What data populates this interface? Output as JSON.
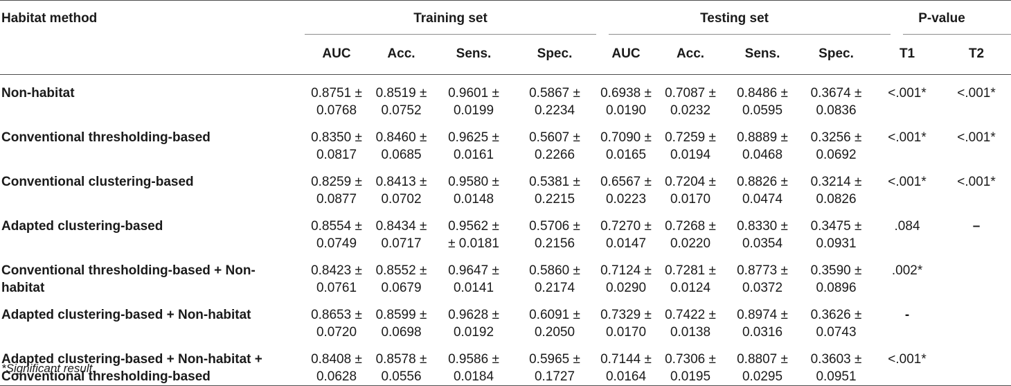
{
  "header": {
    "method_label": "Habitat method",
    "groups": {
      "training": "Training set",
      "testing": "Testing set",
      "pvalue": "P-value"
    },
    "metrics": [
      "AUC",
      "Acc.",
      "Sens.",
      "Spec.",
      "AUC",
      "Acc.",
      "Sens.",
      "Spec.",
      "T1",
      "T2"
    ]
  },
  "rows": [
    {
      "method": "Non-habitat",
      "cells": [
        [
          "0.8751 ±",
          "0.0768"
        ],
        [
          "0.8519 ±",
          "0.0752"
        ],
        [
          "0.9601 ±",
          "0.0199"
        ],
        [
          "0.5867 ±",
          "0.2234"
        ],
        [
          "0.6938 ±",
          "0.0190"
        ],
        [
          "0.7087 ±",
          "0.0232"
        ],
        [
          "0.8486 ±",
          "0.0595"
        ],
        [
          "0.3674 ±",
          "0.0836"
        ]
      ],
      "t1": "<.001*",
      "t2": "<.001*"
    },
    {
      "method": "Conventional thresholding-based",
      "cells": [
        [
          "0.8350 ±",
          "0.0817"
        ],
        [
          "0.8460 ±",
          "0.0685"
        ],
        [
          "0.9625 ±",
          "0.0161"
        ],
        [
          "0.5607 ±",
          "0.2266"
        ],
        [
          "0.7090 ±",
          "0.0165"
        ],
        [
          "0.7259 ±",
          "0.0194"
        ],
        [
          "0.8889 ±",
          "0.0468"
        ],
        [
          "0.3256 ±",
          "0.0692"
        ]
      ],
      "t1": "<.001*",
      "t2": "<.001*"
    },
    {
      "method": "Conventional clustering-based",
      "cells": [
        [
          "0.8259 ±",
          "0.0877"
        ],
        [
          "0.8413 ±",
          "0.0702"
        ],
        [
          "0.9580 ±",
          "0.0148"
        ],
        [
          "0.5381 ±",
          "0.2215"
        ],
        [
          "0.6567 ±",
          "0.0223"
        ],
        [
          "0.7204 ±",
          "0.0170"
        ],
        [
          "0.8826 ±",
          "0.0474"
        ],
        [
          "0.3214 ±",
          "0.0826"
        ]
      ],
      "t1": "<.001*",
      "t2": "<.001*"
    },
    {
      "method": "Adapted clustering-based",
      "cells": [
        [
          "0.8554 ±",
          "0.0749"
        ],
        [
          "0.8434 ±",
          "0.0717"
        ],
        [
          "0.9562 ±",
          "± 0.0181"
        ],
        [
          "0.5706 ±",
          "0.2156"
        ],
        [
          "0.7270 ±",
          "0.0147"
        ],
        [
          "0.7268 ±",
          "0.0220"
        ],
        [
          "0.8330 ±",
          "0.0354"
        ],
        [
          "0.3475 ±",
          "0.0931"
        ]
      ],
      "t1": ".084",
      "t2": "–"
    },
    {
      "method_line1": "Conventional thresholding-based + Non-",
      "method_line2": "habitat",
      "cells": [
        [
          "0.8423 ±",
          "0.0761"
        ],
        [
          "0.8552 ±",
          "0.0679"
        ],
        [
          "0.9647 ±",
          "0.0141"
        ],
        [
          "0.5860 ±",
          "0.2174"
        ],
        [
          "0.7124 ±",
          "0.0290"
        ],
        [
          "0.7281 ±",
          "0.0124"
        ],
        [
          "0.8773 ±",
          "0.0372"
        ],
        [
          "0.3590 ±",
          "0.0896"
        ]
      ],
      "t1": ".002*",
      "t2": ""
    },
    {
      "method": "Adapted clustering-based + Non-habitat",
      "cells": [
        [
          "0.8653 ±",
          "0.0720"
        ],
        [
          "0.8599 ±",
          "0.0698"
        ],
        [
          "0.9628 ±",
          "0.0192"
        ],
        [
          "0.6091 ±",
          "0.2050"
        ],
        [
          "0.7329 ±",
          "0.0170"
        ],
        [
          "0.7422 ±",
          "0.0138"
        ],
        [
          "0.8974 ±",
          "0.0316"
        ],
        [
          "0.3626 ±",
          "0.0743"
        ]
      ],
      "t1": "-",
      "t2": ""
    },
    {
      "method_line1": "Adapted clustering-based + Non-habitat +",
      "method_line2": "Conventional thresholding-based",
      "cells": [
        [
          "0.8408 ±",
          "0.0628"
        ],
        [
          "0.8578 ±",
          "0.0556"
        ],
        [
          "0.9586 ±",
          "0.0184"
        ],
        [
          "0.5965 ±",
          "0.1727"
        ],
        [
          "0.7144 ±",
          "0.0164"
        ],
        [
          "0.7306 ±",
          "0.0195"
        ],
        [
          "0.8807 ±",
          "0.0295"
        ],
        [
          "0.3603 ±",
          "0.0951"
        ]
      ],
      "t1": "<.001*",
      "t2": ""
    }
  ],
  "footnote": "*Significant result."
}
